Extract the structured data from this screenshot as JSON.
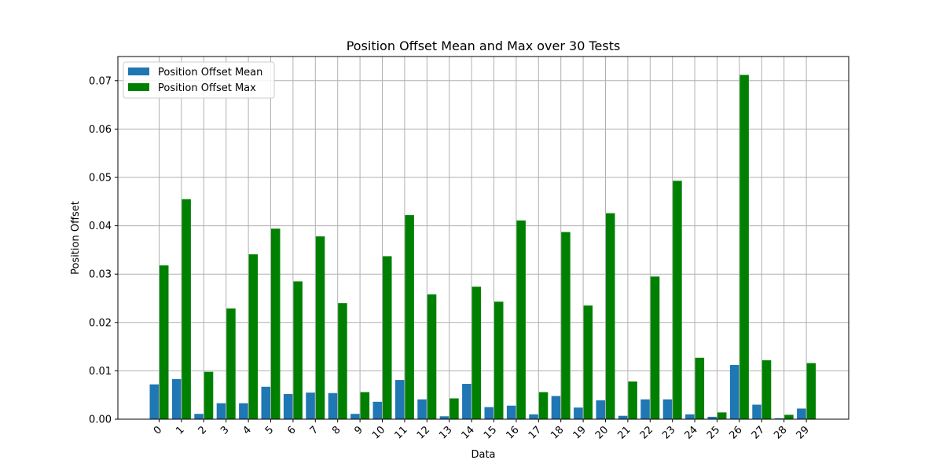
{
  "chart_data": {
    "type": "bar",
    "title": "Position Offset Mean and Max over 30 Tests",
    "xlabel": "Data",
    "ylabel": "Position Offset",
    "categories": [
      "0",
      "1",
      "2",
      "3",
      "4",
      "5",
      "6",
      "7",
      "8",
      "9",
      "10",
      "11",
      "12",
      "13",
      "14",
      "15",
      "16",
      "17",
      "18",
      "19",
      "20",
      "21",
      "22",
      "23",
      "24",
      "25",
      "26",
      "27",
      "28",
      "29"
    ],
    "ylim": [
      0,
      0.075
    ],
    "yticks": [
      "0.00",
      "0.01",
      "0.02",
      "0.03",
      "0.04",
      "0.05",
      "0.06",
      "0.07"
    ],
    "grid": true,
    "legend_position": "upper-left",
    "series": [
      {
        "name": "Position Offset Mean",
        "color": "#1f77b4",
        "values": [
          0.0072,
          0.0083,
          0.0011,
          0.0033,
          0.0033,
          0.0067,
          0.0052,
          0.0055,
          0.0054,
          0.0011,
          0.0036,
          0.0081,
          0.0041,
          0.0006,
          0.0073,
          0.0025,
          0.0028,
          0.001,
          0.0048,
          0.0024,
          0.0039,
          0.0007,
          0.0041,
          0.0041,
          0.001,
          0.0005,
          0.0112,
          0.003,
          0.0002,
          0.0022
        ]
      },
      {
        "name": "Position Offset Max",
        "color": "#008000",
        "values": [
          0.0318,
          0.0455,
          0.0098,
          0.0229,
          0.0341,
          0.0394,
          0.0285,
          0.0378,
          0.024,
          0.0056,
          0.0337,
          0.0422,
          0.0258,
          0.0043,
          0.0274,
          0.0243,
          0.0411,
          0.0056,
          0.0387,
          0.0235,
          0.0426,
          0.0078,
          0.0295,
          0.0493,
          0.0127,
          0.0014,
          0.0712,
          0.0122,
          0.0009,
          0.0116
        ]
      }
    ]
  }
}
